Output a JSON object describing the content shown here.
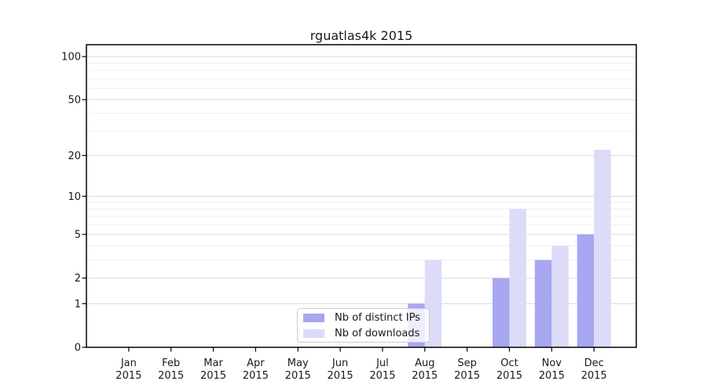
{
  "chart_data": {
    "type": "bar",
    "title": "rguatlas4k 2015",
    "categories": [
      "Jan 2015",
      "Feb 2015",
      "Mar 2015",
      "Apr 2015",
      "May 2015",
      "Jun 2015",
      "Jul 2015",
      "Aug 2015",
      "Sep 2015",
      "Oct 2015",
      "Nov 2015",
      "Dec 2015"
    ],
    "x_tick_top": [
      "Jan",
      "Feb",
      "Mar",
      "Apr",
      "May",
      "Jun",
      "Jul",
      "Aug",
      "Sep",
      "Oct",
      "Nov",
      "Dec"
    ],
    "x_tick_bottom": [
      "2015",
      "2015",
      "2015",
      "2015",
      "2015",
      "2015",
      "2015",
      "2015",
      "2015",
      "2015",
      "2015",
      "2015"
    ],
    "series": [
      {
        "name": "Nb of distinct IPs",
        "color": "#a7a7f2",
        "values": [
          0,
          0,
          0,
          0,
          0,
          0,
          0,
          1,
          0,
          2,
          3,
          5
        ]
      },
      {
        "name": "Nb of downloads",
        "color": "#dcdcf8",
        "values": [
          0,
          0,
          0,
          0,
          0,
          0,
          0,
          3,
          0,
          8,
          4,
          22
        ]
      }
    ],
    "y_axis": {
      "scale": "log1p",
      "ticks": [
        0,
        1,
        2,
        5,
        10,
        20,
        50,
        100
      ],
      "minor_gridlines": [
        3,
        4,
        6,
        7,
        8,
        9,
        30,
        40,
        60,
        70,
        80,
        90
      ],
      "max": 121
    },
    "xlabel": "",
    "ylabel": "",
    "grid": true,
    "legend_position": "inside-bottom-center",
    "colors": {
      "grid_major": "#d9d9d9",
      "grid_minor": "#efefef",
      "axis": "#000000",
      "text": "#1a1a1a",
      "legend_border": "#cccccc",
      "legend_bg": "rgba(255,255,255,0.8)"
    }
  }
}
